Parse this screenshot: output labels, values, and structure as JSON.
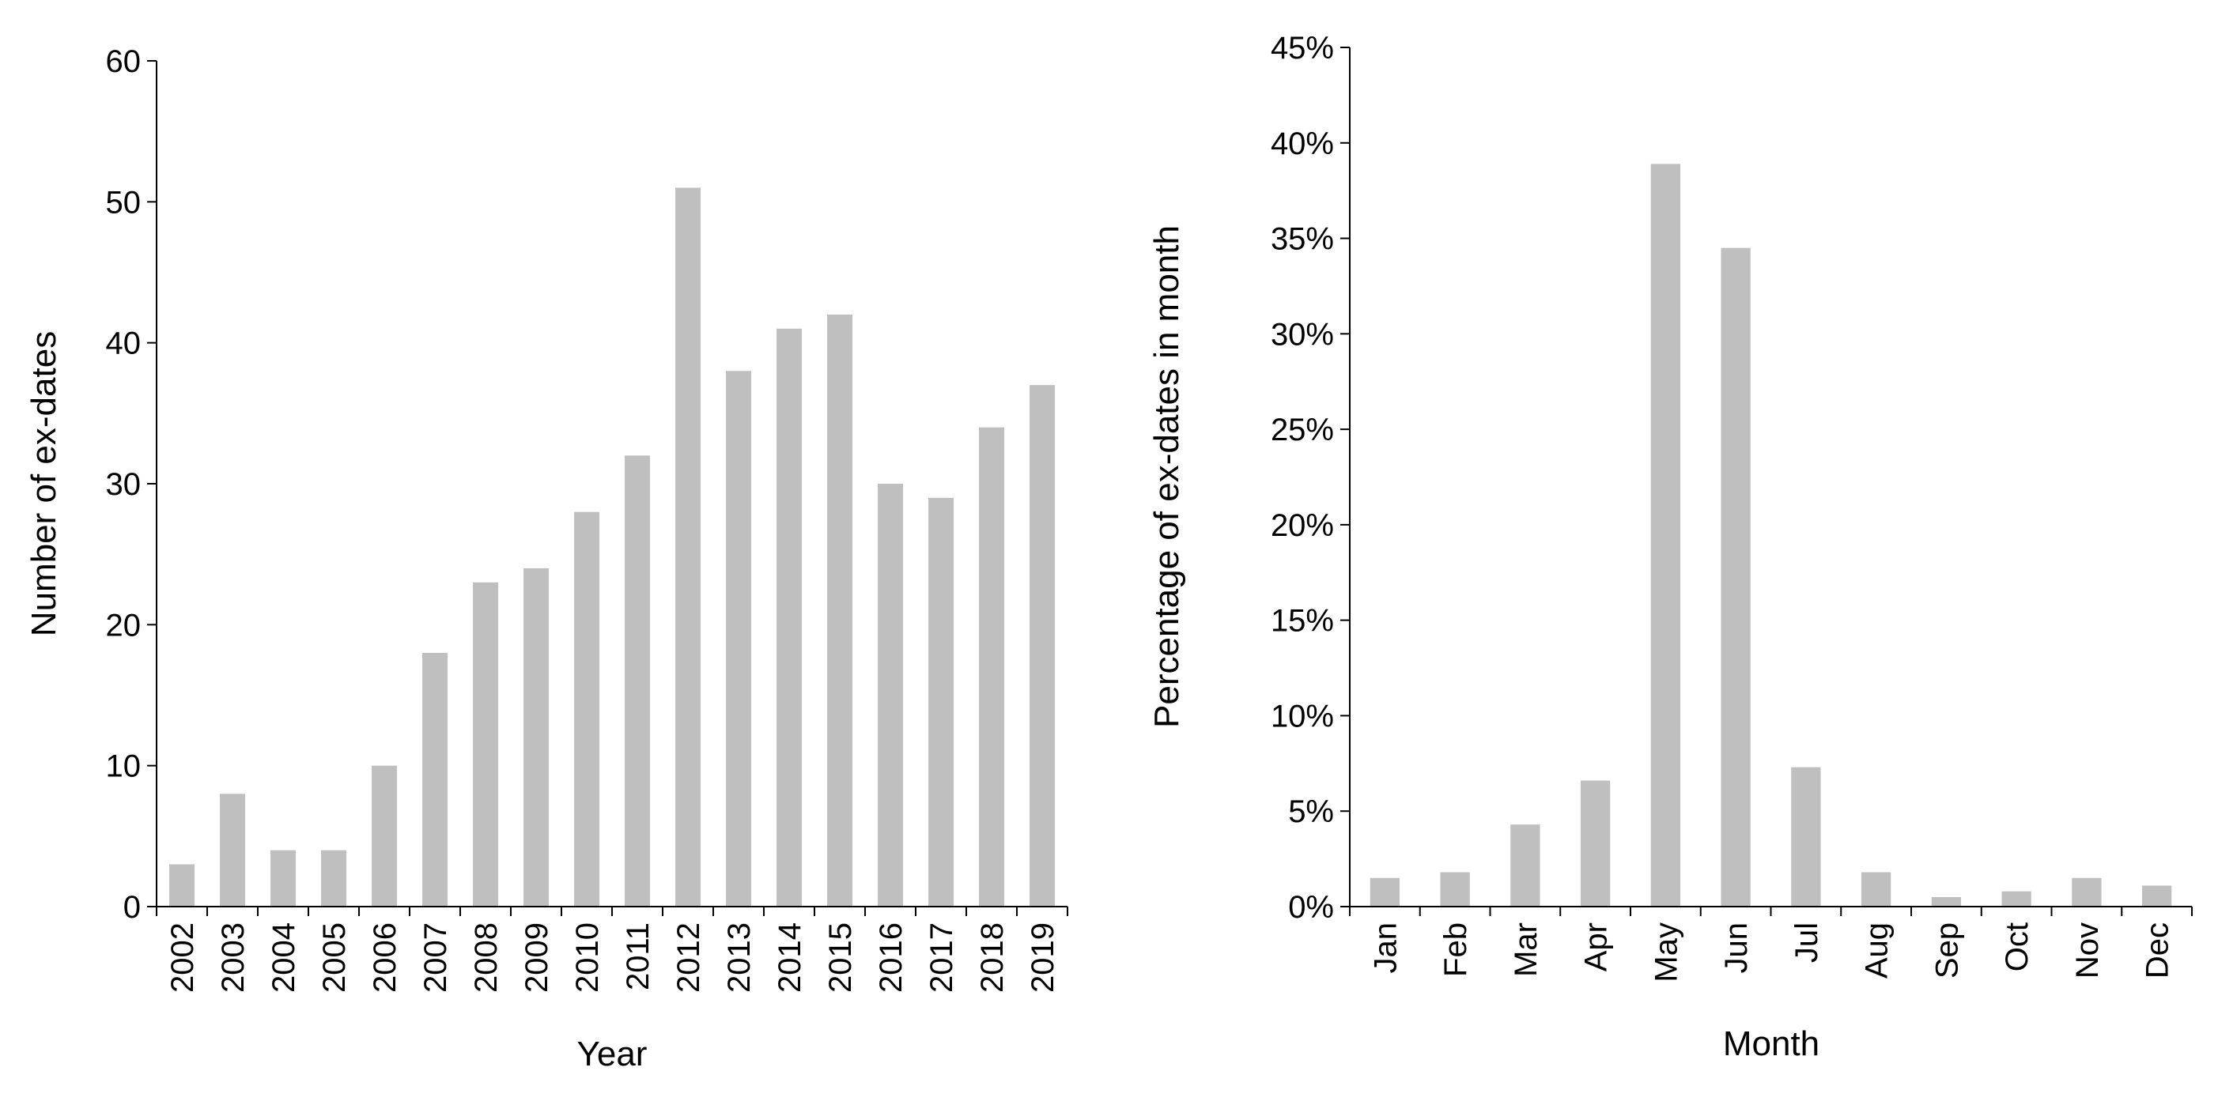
{
  "colors": {
    "bar": "#bfbfbf",
    "axis": "#000000",
    "text": "#000000"
  },
  "chart_data": [
    {
      "type": "bar",
      "title": "",
      "xlabel": "Year",
      "ylabel": "Number of ex-dates",
      "ylim": [
        0,
        60
      ],
      "yticks": [
        "0",
        "10",
        "20",
        "30",
        "40",
        "50",
        "60"
      ],
      "grid": false,
      "categories": [
        "2002",
        "2003",
        "2004",
        "2005",
        "2006",
        "2007",
        "2008",
        "2009",
        "2010",
        "2011",
        "2012",
        "2013",
        "2014",
        "2015",
        "2016",
        "2017",
        "2018",
        "2019"
      ],
      "values": [
        3,
        8,
        4,
        4,
        10,
        18,
        23,
        24,
        28,
        32,
        51,
        38,
        41,
        42,
        30,
        29,
        34,
        37
      ]
    },
    {
      "type": "bar",
      "title": "",
      "xlabel": "Month",
      "ylabel": "Percentage of ex-dates in month",
      "ylim": [
        0,
        0.45
      ],
      "yticks": [
        "0%",
        "5%",
        "10%",
        "15%",
        "20%",
        "25%",
        "30%",
        "35%",
        "40%",
        "45%"
      ],
      "grid": false,
      "categories": [
        "Jan",
        "Feb",
        "Mar",
        "Apr",
        "May",
        "Jun",
        "Jul",
        "Aug",
        "Sep",
        "Oct",
        "Nov",
        "Dec"
      ],
      "values": [
        0.015,
        0.018,
        0.043,
        0.066,
        0.389,
        0.345,
        0.073,
        0.018,
        0.005,
        0.008,
        0.015,
        0.011
      ]
    }
  ]
}
